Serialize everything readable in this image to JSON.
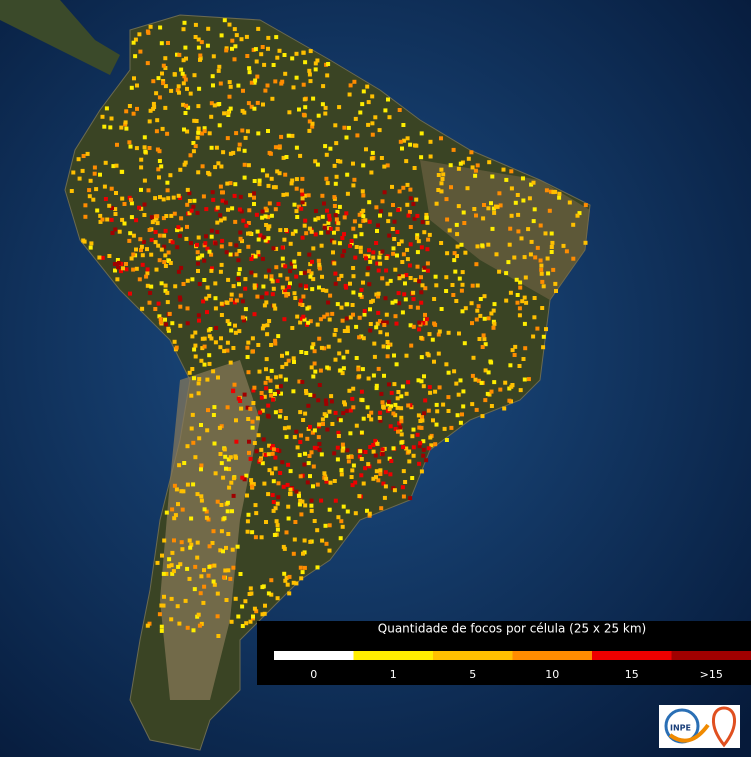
{
  "legend": {
    "title": "Quantidade de focos por célula (25 x 25 km)",
    "labels": [
      0,
      1,
      5,
      10,
      15,
      ">15"
    ],
    "colors": [
      "#ffffff",
      "#ffee00",
      "#ffc000",
      "#ff8c00",
      "#ee0000",
      "#a00000"
    ]
  },
  "logo": {
    "text": "INPE"
  }
}
